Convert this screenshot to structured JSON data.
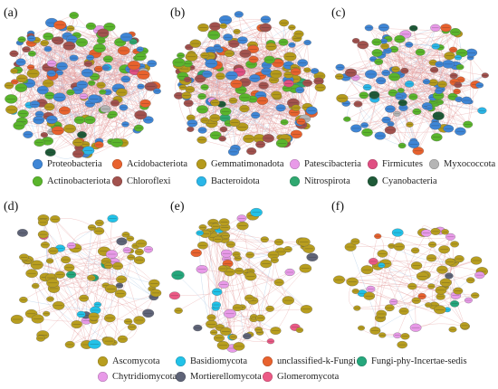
{
  "panels": [
    {
      "label": "(a)"
    },
    {
      "label": "(b)"
    },
    {
      "label": "(c)"
    },
    {
      "label": "(d)"
    },
    {
      "label": "(e)"
    },
    {
      "label": "(f)"
    }
  ],
  "bacteria_legend": [
    {
      "name": "Proteobacteria",
      "color": "#3f86d6"
    },
    {
      "name": "Acidobacteriota",
      "color": "#e8622e"
    },
    {
      "name": "Gemmatimonadota",
      "color": "#b59a1b"
    },
    {
      "name": "Patescibacteria",
      "color": "#e89ae8"
    },
    {
      "name": "Firmicutes",
      "color": "#e04f82"
    },
    {
      "name": "Myxococcota",
      "color": "#b5b5b5"
    },
    {
      "name": "Actinobacteriota",
      "color": "#5ab52c"
    },
    {
      "name": "Chloroflexi",
      "color": "#a2524e"
    },
    {
      "name": "Bacteroidota",
      "color": "#2ab6e8"
    },
    {
      "name": "Nitrospirota",
      "color": "#2fa870"
    },
    {
      "name": "Cyanobacteria",
      "color": "#1f5a38"
    }
  ],
  "fungi_legend": [
    {
      "name": "Ascomycota",
      "color": "#b89e1f"
    },
    {
      "name": "Basidiomycota",
      "color": "#22c2e8"
    },
    {
      "name": "unclassified-k-Fungi",
      "color": "#e8622e"
    },
    {
      "name": "Fungi-phy-Incertae-sedis",
      "color": "#25a77c"
    },
    {
      "name": "Chytridiomycota",
      "color": "#e89ae8"
    },
    {
      "name": "Mortierellomycota",
      "color": "#5f6478"
    },
    {
      "name": "Glomeromycota",
      "color": "#ec5a86"
    }
  ]
}
